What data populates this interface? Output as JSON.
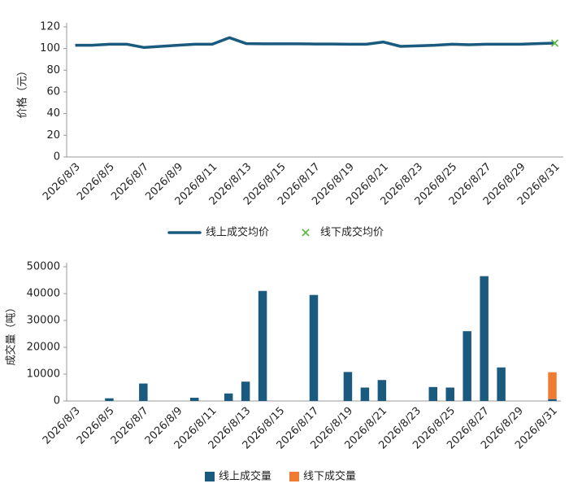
{
  "chart_data": [
    {
      "type": "line",
      "y_label": "价格（元）",
      "categories": [
        "2026/8/3",
        null,
        "2026/8/5",
        null,
        "2026/8/7",
        null,
        "2026/8/9",
        null,
        "2026/8/11",
        null,
        "2026/8/13",
        null,
        "2026/8/15",
        null,
        "2026/8/17",
        null,
        "2026/8/19",
        null,
        "2026/8/21",
        null,
        "2026/8/23",
        null,
        "2026/8/25",
        null,
        "2026/8/27",
        null,
        "2026/8/29",
        null,
        "2026/8/31"
      ],
      "series": [
        {
          "name": "线上成交均价",
          "color": "#1a5a7e",
          "marker": "none",
          "values": [
            103,
            103,
            104,
            104,
            101,
            102,
            103,
            104,
            104,
            110,
            104.5,
            104.3,
            104.3,
            104.3,
            104.2,
            104.2,
            104,
            104,
            106,
            102,
            102.5,
            103,
            104,
            103.5,
            104,
            104,
            104,
            104.5,
            105
          ]
        },
        {
          "name": "线下成交均价",
          "color": "#5fb946",
          "marker": "x",
          "values": [
            null,
            null,
            null,
            null,
            null,
            null,
            null,
            null,
            null,
            null,
            null,
            null,
            null,
            null,
            null,
            null,
            null,
            null,
            null,
            null,
            null,
            null,
            null,
            null,
            null,
            null,
            null,
            null,
            105
          ]
        }
      ],
      "ylim": [
        0,
        120
      ],
      "yticks": [
        0,
        20,
        40,
        60,
        80,
        100,
        120
      ]
    },
    {
      "type": "bar",
      "stacked": true,
      "y_label": "成交量（吨）",
      "categories": [
        "2026/8/3",
        null,
        "2026/8/5",
        null,
        "2026/8/7",
        null,
        "2026/8/9",
        null,
        "2026/8/11",
        null,
        "2026/8/13",
        null,
        "2026/8/15",
        null,
        "2026/8/17",
        null,
        "2026/8/19",
        null,
        "2026/8/21",
        null,
        "2026/8/23",
        null,
        "2026/8/25",
        null,
        "2026/8/27",
        null,
        "2026/8/29",
        null,
        "2026/8/31"
      ],
      "series": [
        {
          "name": "线上成交量",
          "color": "#1a5a7e",
          "values": [
            null,
            null,
            1000,
            null,
            6500,
            null,
            null,
            1200,
            null,
            2800,
            7200,
            41000,
            null,
            null,
            39500,
            null,
            10800,
            5000,
            7800,
            null,
            null,
            5200,
            5000,
            26000,
            46500,
            12500,
            null,
            null,
            700
          ]
        },
        {
          "name": "线下成交量",
          "color": "#f07b32",
          "values": [
            null,
            null,
            null,
            null,
            null,
            null,
            null,
            null,
            null,
            null,
            null,
            null,
            null,
            null,
            null,
            null,
            null,
            null,
            null,
            null,
            null,
            null,
            null,
            null,
            null,
            null,
            null,
            null,
            10000
          ]
        }
      ],
      "ylim": [
        0,
        50000
      ],
      "yticks": [
        0,
        10000,
        20000,
        30000,
        40000,
        50000
      ]
    }
  ]
}
